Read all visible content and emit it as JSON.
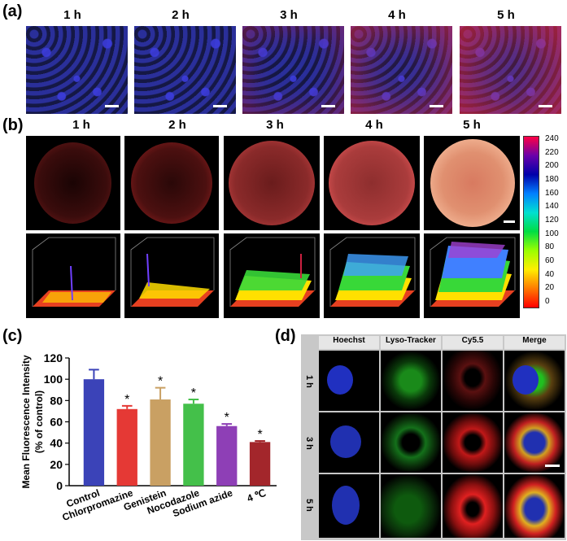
{
  "panel_labels": {
    "a": "(a)",
    "b": "(b)",
    "c": "(c)",
    "d": "(d)"
  },
  "times": [
    "1 h",
    "2 h",
    "3 h",
    "4 h",
    "5 h"
  ],
  "colorbar_ticks": [
    "240",
    "220",
    "200",
    "180",
    "160",
    "140",
    "120",
    "100",
    "80",
    "60",
    "40",
    "20",
    "0"
  ],
  "panel_d": {
    "headers": [
      "Hoechst",
      "Lyso-Tracker",
      "Cy5.5",
      "Merge"
    ],
    "rows": [
      "1 h",
      "3 h",
      "5 h"
    ]
  },
  "chart_data": {
    "type": "bar",
    "categories": [
      "Control",
      "Chlorpromazine",
      "Genistein",
      "Nocodazole",
      "Sodium azide",
      "4 ℃"
    ],
    "values": [
      100,
      72,
      81,
      77,
      56,
      41
    ],
    "errors": [
      9,
      3,
      11,
      4,
      2,
      1
    ],
    "significance": [
      "",
      "*",
      "*",
      "*",
      "*",
      "*"
    ],
    "colors": [
      "#3b43b8",
      "#e53935",
      "#c9a063",
      "#44c04a",
      "#8e3fb6",
      "#a3262b"
    ],
    "ylabel": "Mean Fluorescence Intensity\n(% of control)",
    "ylabel_lines": [
      "Mean Fluorescence Intensity",
      "(% of control)"
    ],
    "yticks": [
      "0",
      "20",
      "40",
      "60",
      "80",
      "100",
      "120"
    ],
    "ylim": [
      0,
      120
    ]
  }
}
